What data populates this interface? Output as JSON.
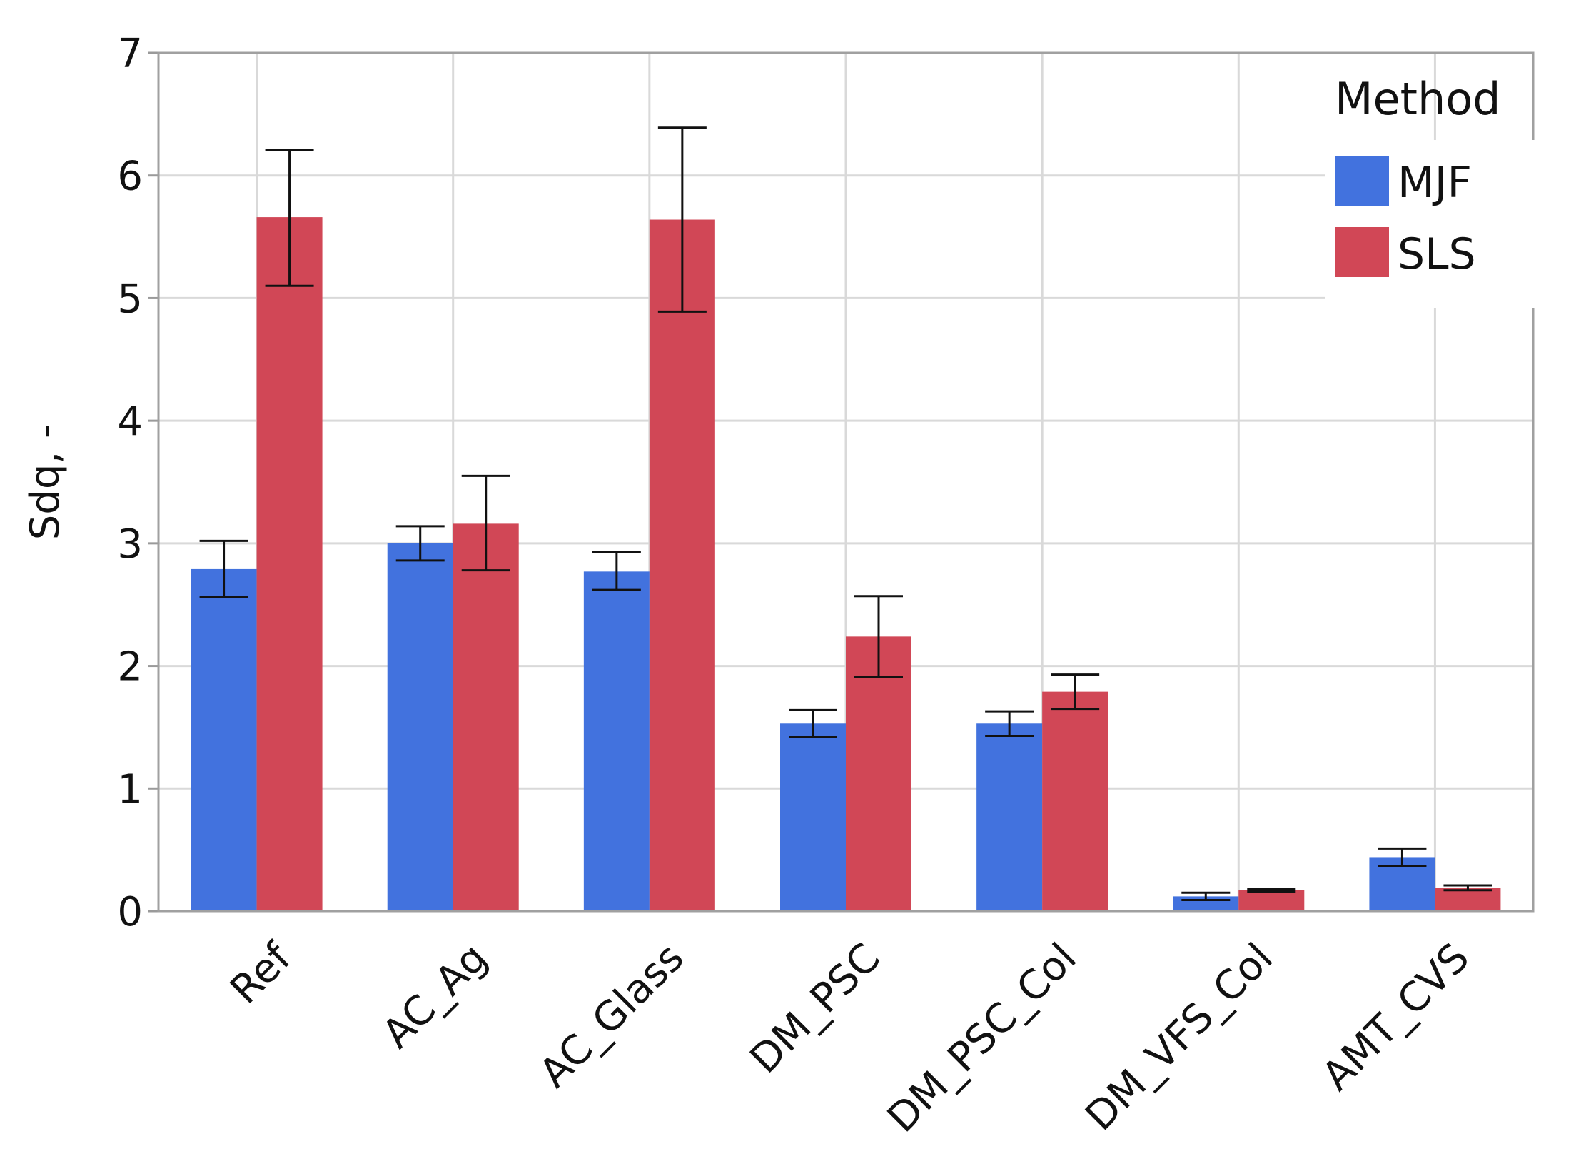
{
  "chart_data": {
    "type": "bar",
    "title": "",
    "xlabel": "",
    "ylabel": "Sdq, -",
    "ylim": [
      0,
      7
    ],
    "yticks": [
      0,
      1,
      2,
      3,
      4,
      5,
      6,
      7
    ],
    "grid": true,
    "categories": [
      "Ref",
      "AC_Ag",
      "AC_Glass",
      "DM_PSC",
      "DM_PSC_Col",
      "DM_VFS_Col",
      "AMT_CVS"
    ],
    "legend": {
      "title": "Method",
      "placement": "top-right"
    },
    "series": [
      {
        "name": "MJF",
        "color": "#4272DE",
        "values": [
          2.79,
          3.0,
          2.77,
          1.53,
          1.53,
          0.12,
          0.44
        ],
        "error_low": [
          2.56,
          2.86,
          2.62,
          1.42,
          1.43,
          0.09,
          0.37
        ],
        "error_high": [
          3.02,
          3.14,
          2.93,
          1.64,
          1.63,
          0.15,
          0.51
        ]
      },
      {
        "name": "SLS",
        "color": "#D14756",
        "values": [
          5.66,
          3.16,
          5.64,
          2.24,
          1.79,
          0.17,
          0.19
        ],
        "error_low": [
          5.1,
          2.78,
          4.89,
          1.91,
          1.65,
          0.16,
          0.17
        ],
        "error_high": [
          6.21,
          3.55,
          6.39,
          2.57,
          1.93,
          0.18,
          0.21
        ]
      }
    ]
  }
}
